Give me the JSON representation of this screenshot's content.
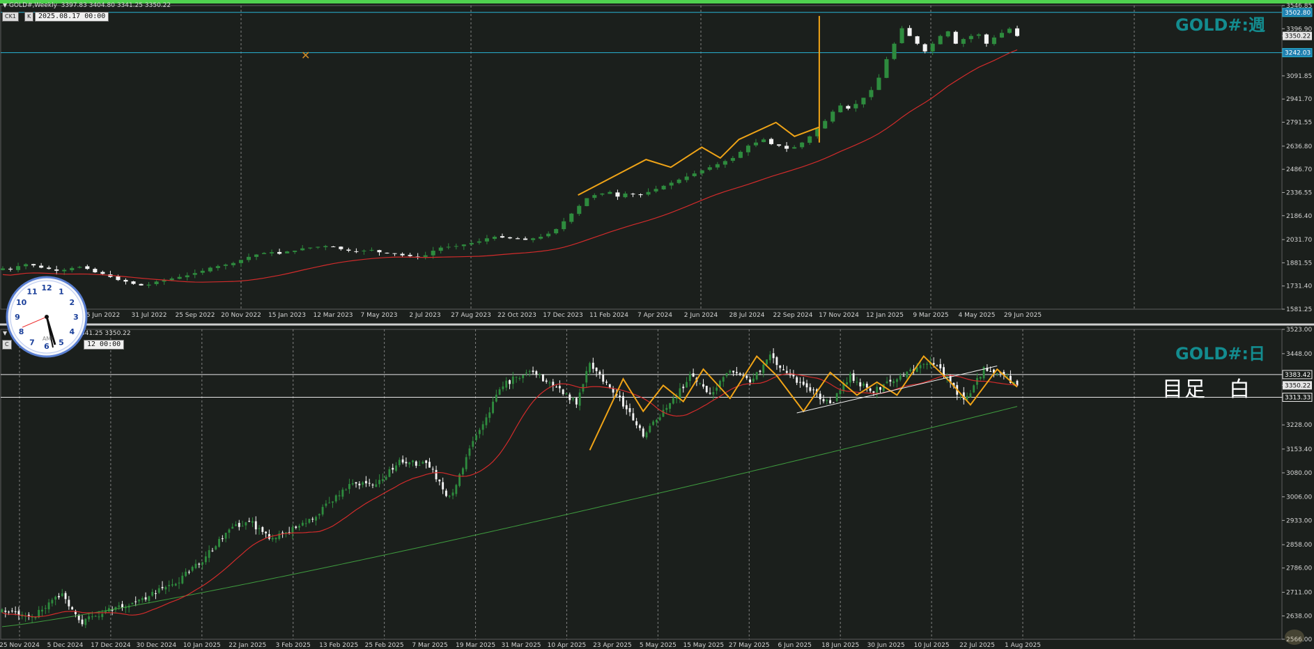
{
  "window": {
    "top_symbol": "GOLD#,Weekly",
    "top_ohlc": "3397.83 3404.80 3341.25 3350.22",
    "top_label": "GOLD#:週",
    "top_stamp": "2025.08.17 00:00",
    "top_btn1": "CK1",
    "top_btn2": "K",
    "bottom_ohlc": "3404.80 3341.25 3350.22",
    "bottom_label": "GOLD#:日",
    "bottom_stamp": "12 00:00",
    "bottom_btn": "C",
    "note_text": "目足　白"
  },
  "colors": {
    "background": "#1b1f1c",
    "bull_candle": "#2e8b3e",
    "bear_candle": "#f4f4f4",
    "ma_red": "#d22b2b",
    "ma_green": "#3f9d3f",
    "zigzag": "#f0a417",
    "hline_cyan": "#29b6d6",
    "hline_white": "#e8e8e8",
    "grid": "#9a9a9a",
    "axis_text": "#d4d4d4",
    "label_teal": "#138c8f"
  },
  "chart_data": [
    {
      "type": "candlestick",
      "title": "GOLD#,Weekly",
      "timeframe": "weekly",
      "ylim": [
        1581.25,
        3546.85
      ],
      "y_ticks": [
        "3546.85",
        "3396.90",
        "3350.22",
        "3242.03",
        "3091.85",
        "2941.70",
        "2791.55",
        "2636.80",
        "2486.70",
        "2336.55",
        "2186.40",
        "2031.70",
        "1881.55",
        "1731.40",
        "1581.25"
      ],
      "x_ticks": [
        "5 Jun 2022",
        "31 Jul 2022",
        "25 Sep 2022",
        "20 Nov 2022",
        "15 Jan 2023",
        "12 Mar 2023",
        "7 May 2023",
        "2 Jul 2023",
        "27 Aug 2023",
        "22 Oct 2023",
        "17 Dec 2023",
        "11 Feb 2024",
        "7 Apr 2024",
        "2 Jun 2024",
        "28 Jul 2024",
        "22 Sep 2024",
        "17 Nov 2024",
        "12 Jan 2025",
        "9 Mar 2025",
        "4 May 2025",
        "29 Jun 2025"
      ],
      "hlines": [
        {
          "value": 3502.8,
          "label": "3502.80",
          "color": "cyan"
        },
        {
          "value": 3242.03,
          "label": "3242.03",
          "color": "cyan"
        }
      ],
      "current_price": "3350.22",
      "close_series": [
        1845,
        1838,
        1860,
        1872,
        1865,
        1850,
        1842,
        1830,
        1836,
        1848,
        1855,
        1842,
        1820,
        1810,
        1790,
        1770,
        1760,
        1745,
        1735,
        1740,
        1760,
        1770,
        1780,
        1790,
        1800,
        1815,
        1830,
        1850,
        1860,
        1870,
        1880,
        1900,
        1920,
        1935,
        1945,
        1950,
        1940,
        1955,
        1960,
        1975,
        1980,
        1985,
        1990,
        1985,
        1970,
        1960,
        1955,
        1960,
        1965,
        1950,
        1945,
        1940,
        1930,
        1925,
        1920,
        1930,
        1960,
        1980,
        1985,
        1990,
        2000,
        2010,
        2020,
        2040,
        2050,
        2045,
        2040,
        2035,
        2030,
        2040,
        2050,
        2070,
        2100,
        2150,
        2200,
        2250,
        2300,
        2320,
        2330,
        2340,
        2310,
        2330,
        2325,
        2320,
        2340,
        2360,
        2380,
        2400,
        2420,
        2440,
        2460,
        2480,
        2500,
        2520,
        2540,
        2560,
        2600,
        2640,
        2660,
        2680,
        2650,
        2640,
        2620,
        2630,
        2660,
        2700,
        2750,
        2800,
        2860,
        2900,
        2880,
        2910,
        2950,
        3000,
        3080,
        3200,
        3300,
        3400,
        3350,
        3300,
        3250,
        3300,
        3350,
        3380,
        3300,
        3330,
        3350,
        3360,
        3300,
        3340,
        3370,
        3397,
        3350
      ],
      "ma_red": {
        "start": 1890,
        "end": 3260
      }
    },
    {
      "type": "candlestick",
      "title": "GOLD#,Daily",
      "timeframe": "daily",
      "ylim": [
        2566.0,
        3523.0
      ],
      "y_ticks": [
        "3523.00",
        "3448.00",
        "3383.42",
        "3350.22",
        "3313.33",
        "3228.00",
        "3153.40",
        "3080.00",
        "3006.00",
        "2933.00",
        "2858.00",
        "2786.00",
        "2711.00",
        "2638.00",
        "2566.00"
      ],
      "x_ticks": [
        "25 Nov 2024",
        "5 Dec 2024",
        "17 Dec 2024",
        "30 Dec 2024",
        "10 Jan 2025",
        "22 Jan 2025",
        "3 Feb 2025",
        "13 Feb 2025",
        "25 Feb 2025",
        "7 Mar 2025",
        "19 Mar 2025",
        "31 Mar 2025",
        "10 Apr 2025",
        "23 Apr 2025",
        "5 May 2025",
        "15 May 2025",
        "27 May 2025",
        "6 Jun 2025",
        "18 Jun 2025",
        "30 Jun 2025",
        "10 Jul 2025",
        "22 Jul 2025",
        "1 Aug 2025"
      ],
      "hlines": [
        {
          "value": 3383.42,
          "label": "3383.42",
          "color": "white"
        },
        {
          "value": 3313.33,
          "label": "3313.33",
          "color": "white"
        }
      ],
      "current_price": "3350.22"
    }
  ]
}
